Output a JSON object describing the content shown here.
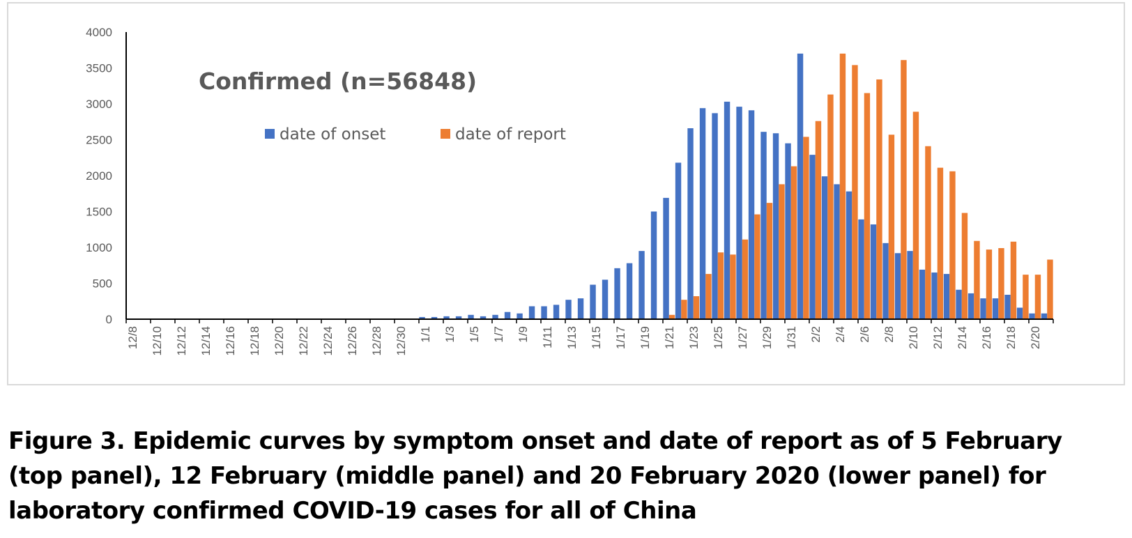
{
  "chart_data": {
    "type": "bar",
    "title": "Confirmed (n=56848)",
    "xlabel": "",
    "ylabel": "",
    "ylim": [
      0,
      4000
    ],
    "yticks": [
      0,
      500,
      1000,
      1500,
      2000,
      2500,
      3000,
      3500,
      4000
    ],
    "legend_position": "top-left",
    "grid": false,
    "categories": [
      "12/8",
      "12/9",
      "12/10",
      "12/11",
      "12/12",
      "12/13",
      "12/14",
      "12/15",
      "12/16",
      "12/17",
      "12/18",
      "12/19",
      "12/20",
      "12/21",
      "12/22",
      "12/23",
      "12/24",
      "12/25",
      "12/26",
      "12/27",
      "12/28",
      "12/29",
      "12/30",
      "12/31",
      "1/1",
      "1/2",
      "1/3",
      "1/4",
      "1/5",
      "1/6",
      "1/7",
      "1/8",
      "1/9",
      "1/10",
      "1/11",
      "1/12",
      "1/13",
      "1/14",
      "1/15",
      "1/16",
      "1/17",
      "1/18",
      "1/19",
      "1/20",
      "1/21",
      "1/22",
      "1/23",
      "1/24",
      "1/25",
      "1/26",
      "1/27",
      "1/28",
      "1/29",
      "1/30",
      "1/31",
      "2/1",
      "2/2",
      "2/3",
      "2/4",
      "2/5",
      "2/6",
      "2/7",
      "2/8",
      "2/9",
      "2/10",
      "2/11",
      "2/12",
      "2/13",
      "2/14",
      "2/15",
      "2/16",
      "2/17",
      "2/18",
      "2/19",
      "2/20",
      "2/21"
    ],
    "tick_labels": [
      "12/8",
      "12/10",
      "12/12",
      "12/14",
      "12/16",
      "12/18",
      "12/20",
      "12/22",
      "12/24",
      "12/26",
      "12/28",
      "12/30",
      "1/1",
      "1/3",
      "1/5",
      "1/7",
      "1/9",
      "1/11",
      "1/13",
      "1/15",
      "1/17",
      "1/19",
      "1/21",
      "1/23",
      "1/25",
      "1/27",
      "1/29",
      "1/31",
      "2/2",
      "2/4",
      "2/6",
      "2/8",
      "2/10",
      "2/12",
      "2/14",
      "2/16",
      "2/18",
      "2/20"
    ],
    "series": [
      {
        "name": "date of onset",
        "color": "#4472c4",
        "values": [
          0,
          0,
          0,
          0,
          0,
          0,
          0,
          0,
          0,
          0,
          0,
          0,
          0,
          0,
          0,
          0,
          0,
          0,
          0,
          0,
          0,
          0,
          0,
          0,
          30,
          30,
          40,
          40,
          60,
          40,
          60,
          100,
          80,
          180,
          180,
          200,
          270,
          290,
          480,
          550,
          710,
          780,
          950,
          1500,
          1690,
          2180,
          2660,
          2940,
          2870,
          3030,
          2960,
          2910,
          2610,
          2590,
          2450,
          3700,
          2290,
          1990,
          1880,
          1780,
          1390,
          1320,
          1060,
          920,
          950,
          690,
          650,
          630,
          410,
          360,
          290,
          290,
          340,
          160,
          80,
          80
        ]
      },
      {
        "name": "date of report",
        "color": "#ed7d31",
        "values": [
          0,
          0,
          0,
          0,
          0,
          0,
          0,
          0,
          0,
          0,
          0,
          0,
          0,
          0,
          0,
          0,
          0,
          0,
          0,
          0,
          0,
          0,
          0,
          0,
          0,
          0,
          0,
          0,
          0,
          0,
          0,
          0,
          0,
          0,
          0,
          0,
          0,
          0,
          0,
          0,
          0,
          0,
          0,
          0,
          60,
          270,
          320,
          630,
          930,
          900,
          1110,
          1460,
          1620,
          1880,
          2130,
          2540,
          2760,
          3130,
          3700,
          3540,
          3150,
          3340,
          2570,
          3610,
          2890,
          2410,
          2110,
          2060,
          1480,
          1090,
          970,
          990,
          1080,
          620,
          620,
          830
        ]
      }
    ]
  },
  "caption": "Figure 3.  Epidemic curves by symptom onset and date of report as of 5 February (top panel), 12 February (middle panel) and 20 February 2020 (lower panel) for laboratory confirmed COVID-19 cases for all of China"
}
